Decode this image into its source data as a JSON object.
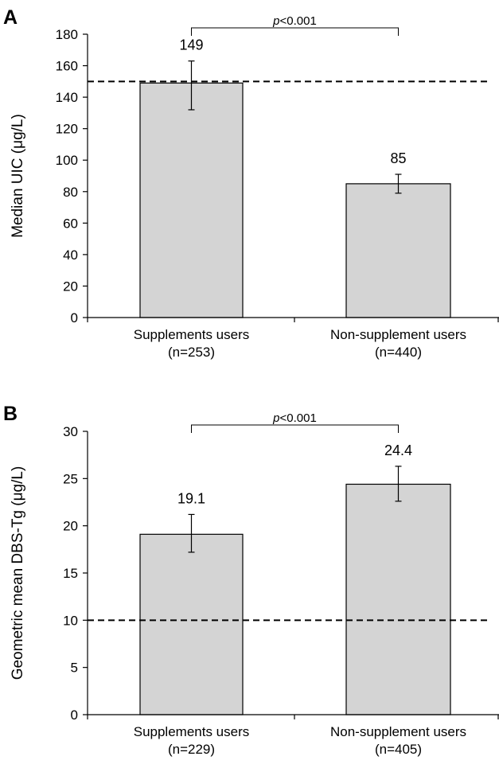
{
  "chart_data": [
    {
      "panel_label": "A",
      "type": "bar",
      "categories": [
        [
          "Supplements users",
          "(n=253)"
        ],
        [
          "Non-supplement users",
          "(n=440)"
        ]
      ],
      "values": [
        149,
        85
      ],
      "value_labels": [
        "149",
        "85"
      ],
      "error_bars": [
        [
          132,
          163
        ],
        [
          79,
          91
        ]
      ],
      "ylabel": "Median UIC (μg/L)",
      "ylim": [
        0,
        180
      ],
      "yticks": [
        0,
        20,
        40,
        60,
        80,
        100,
        120,
        140,
        160,
        180
      ],
      "reference_line": 150,
      "significance": "p<0.001",
      "grid": false,
      "bar_color": "#d4d4d4"
    },
    {
      "panel_label": "B",
      "type": "bar",
      "categories": [
        [
          "Supplements users",
          "(n=229)"
        ],
        [
          "Non-supplement users",
          "(n=405)"
        ]
      ],
      "values": [
        19.1,
        24.4
      ],
      "value_labels": [
        "19.1",
        "24.4"
      ],
      "error_bars": [
        [
          17.2,
          21.2
        ],
        [
          22.6,
          26.3
        ]
      ],
      "ylabel": "Geometric mean DBS-Tg (μg/L)",
      "ylim": [
        0,
        30
      ],
      "yticks": [
        0,
        5,
        10,
        15,
        20,
        25,
        30
      ],
      "reference_line": 10,
      "significance": "p<0.001",
      "grid": false,
      "bar_color": "#d4d4d4"
    }
  ]
}
